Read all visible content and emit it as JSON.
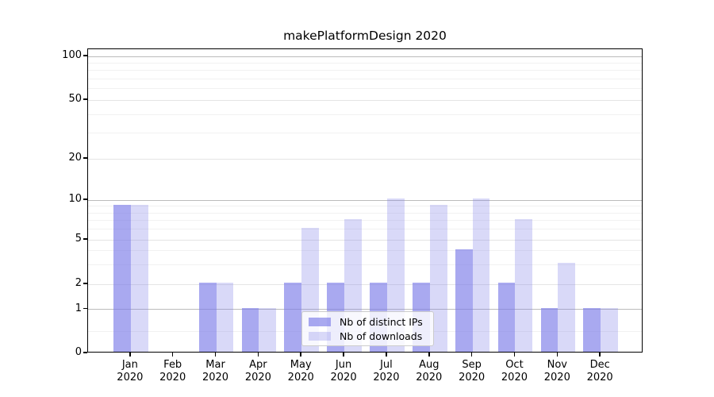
{
  "title": "makePlatformDesign 2020",
  "chart_data": {
    "type": "bar",
    "title": "makePlatformDesign 2020",
    "categories": [
      "Jan 2020",
      "Feb 2020",
      "Mar 2020",
      "Apr 2020",
      "May 2020",
      "Jun 2020",
      "Jul 2020",
      "Aug 2020",
      "Sep 2020",
      "Oct 2020",
      "Nov 2020",
      "Dec 2020"
    ],
    "series": [
      {
        "name": "Nb of distinct IPs",
        "values": [
          9,
          0,
          2,
          1,
          2,
          2,
          2,
          2,
          4,
          2,
          1,
          1
        ]
      },
      {
        "name": "Nb of downloads",
        "values": [
          9,
          0,
          2,
          1,
          6,
          7,
          10,
          9,
          10,
          7,
          3,
          1
        ]
      }
    ],
    "xlabel": "",
    "ylabel": "",
    "yscale": "symlog",
    "ytick_values": [
      100,
      50,
      20,
      10,
      5,
      2,
      1,
      0
    ],
    "ytick_labels": [
      "100",
      "50",
      "20",
      "10",
      "5",
      "2",
      "1",
      "0"
    ],
    "ylim": [
      0,
      130
    ],
    "grid": true,
    "legend_position": "lower center"
  },
  "colors": {
    "bar_base": "#7b7be8",
    "ips_alpha": 0.65,
    "downloads_alpha": 0.29,
    "grid_major": "#bcbcbc",
    "grid_labeled": "#e4e4e4",
    "grid_minor": "#f1f1f1",
    "spine": "#000000",
    "legend_bg_rgba": "rgba(255,255,255,0.8)",
    "legend_border": "#cccccc",
    "text": "#000000"
  }
}
